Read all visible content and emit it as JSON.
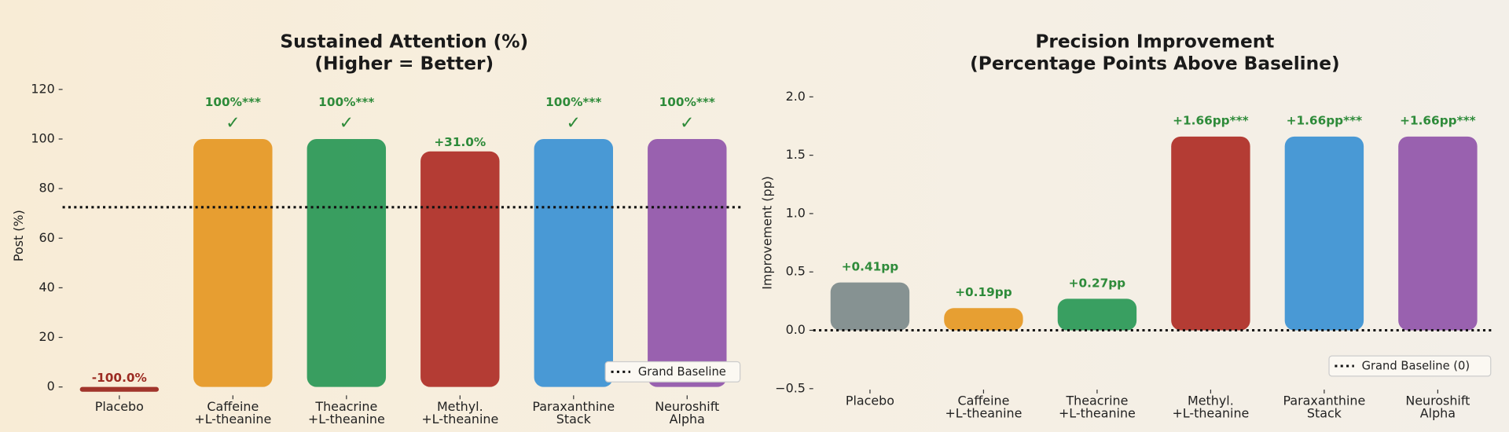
{
  "chart_data": [
    {
      "type": "bar",
      "title": [
        "Sustained Attention (%)",
        "(Higher = Better)"
      ],
      "ylabel": "Post (%)",
      "categories": [
        [
          "Placebo"
        ],
        [
          "Caffeine",
          "+L-theanine"
        ],
        [
          "Theacrine",
          "+L-theanine"
        ],
        [
          "Methyl.",
          "+L-theanine"
        ],
        [
          "Paraxanthine",
          "Stack"
        ],
        [
          "Neuroshift",
          "Alpha"
        ]
      ],
      "values": [
        0,
        100,
        100,
        95,
        100,
        100
      ],
      "colors": [
        "#9c2a22",
        "#e69a28",
        "#2e9a5a",
        "#b0322a",
        "#3f94d4",
        "#9358ac"
      ],
      "annotations": [
        {
          "text": "-100.0%",
          "color": "#9c2a22"
        },
        {
          "text": "100%***",
          "symbol": "✓",
          "color": "#2e8b3a"
        },
        {
          "text": "100%***",
          "symbol": "✓",
          "color": "#2e8b3a"
        },
        {
          "text": "+31.0%",
          "color": "#2e8b3a"
        },
        {
          "text": "100%***",
          "symbol": "✓",
          "color": "#2e8b3a"
        },
        {
          "text": "100%***",
          "symbol": "✓",
          "color": "#2e8b3a"
        }
      ],
      "baseline": {
        "name": "Grand Baseline",
        "value": 72.5
      },
      "ylim": [
        -3,
        125
      ],
      "yticks": [
        0,
        20,
        40,
        60,
        80,
        100,
        120
      ],
      "legend": "lower right",
      "grid": false
    },
    {
      "type": "bar",
      "title": [
        "Precision Improvement",
        "(Percentage Points Above Baseline)"
      ],
      "ylabel": "Improvement (pp)",
      "categories": [
        [
          "Placebo"
        ],
        [
          "Caffeine",
          "+L-theanine"
        ],
        [
          "Theacrine",
          "+L-theanine"
        ],
        [
          "Methyl.",
          "+L-theanine"
        ],
        [
          "Paraxanthine",
          "Stack"
        ],
        [
          "Neuroshift",
          "Alpha"
        ]
      ],
      "values": [
        0.41,
        0.19,
        0.27,
        1.66,
        1.66,
        1.66
      ],
      "value_labels": [
        "+0.41pp",
        "+0.19pp",
        "+0.27pp",
        "+1.66pp***",
        "+1.66pp***",
        "+1.66pp***"
      ],
      "value_label_color": "#2e8b3a",
      "colors": [
        "#7f8c8d",
        "#e69a28",
        "#2e9a5a",
        "#b0322a",
        "#3f94d4",
        "#9358ac"
      ],
      "baseline": {
        "name": "Grand Baseline (0)",
        "value": 0
      },
      "ylim": [
        -0.5,
        2.17
      ],
      "yticks": [
        {
          "value": -0.5,
          "label": "−0.5"
        },
        {
          "value": 0,
          "label": "0.0"
        },
        0.5,
        {
          "value": 1,
          "label": "1.0"
        },
        1.5,
        {
          "value": 2,
          "label": "2.0"
        }
      ],
      "legend": "lower right",
      "grid": false
    }
  ]
}
